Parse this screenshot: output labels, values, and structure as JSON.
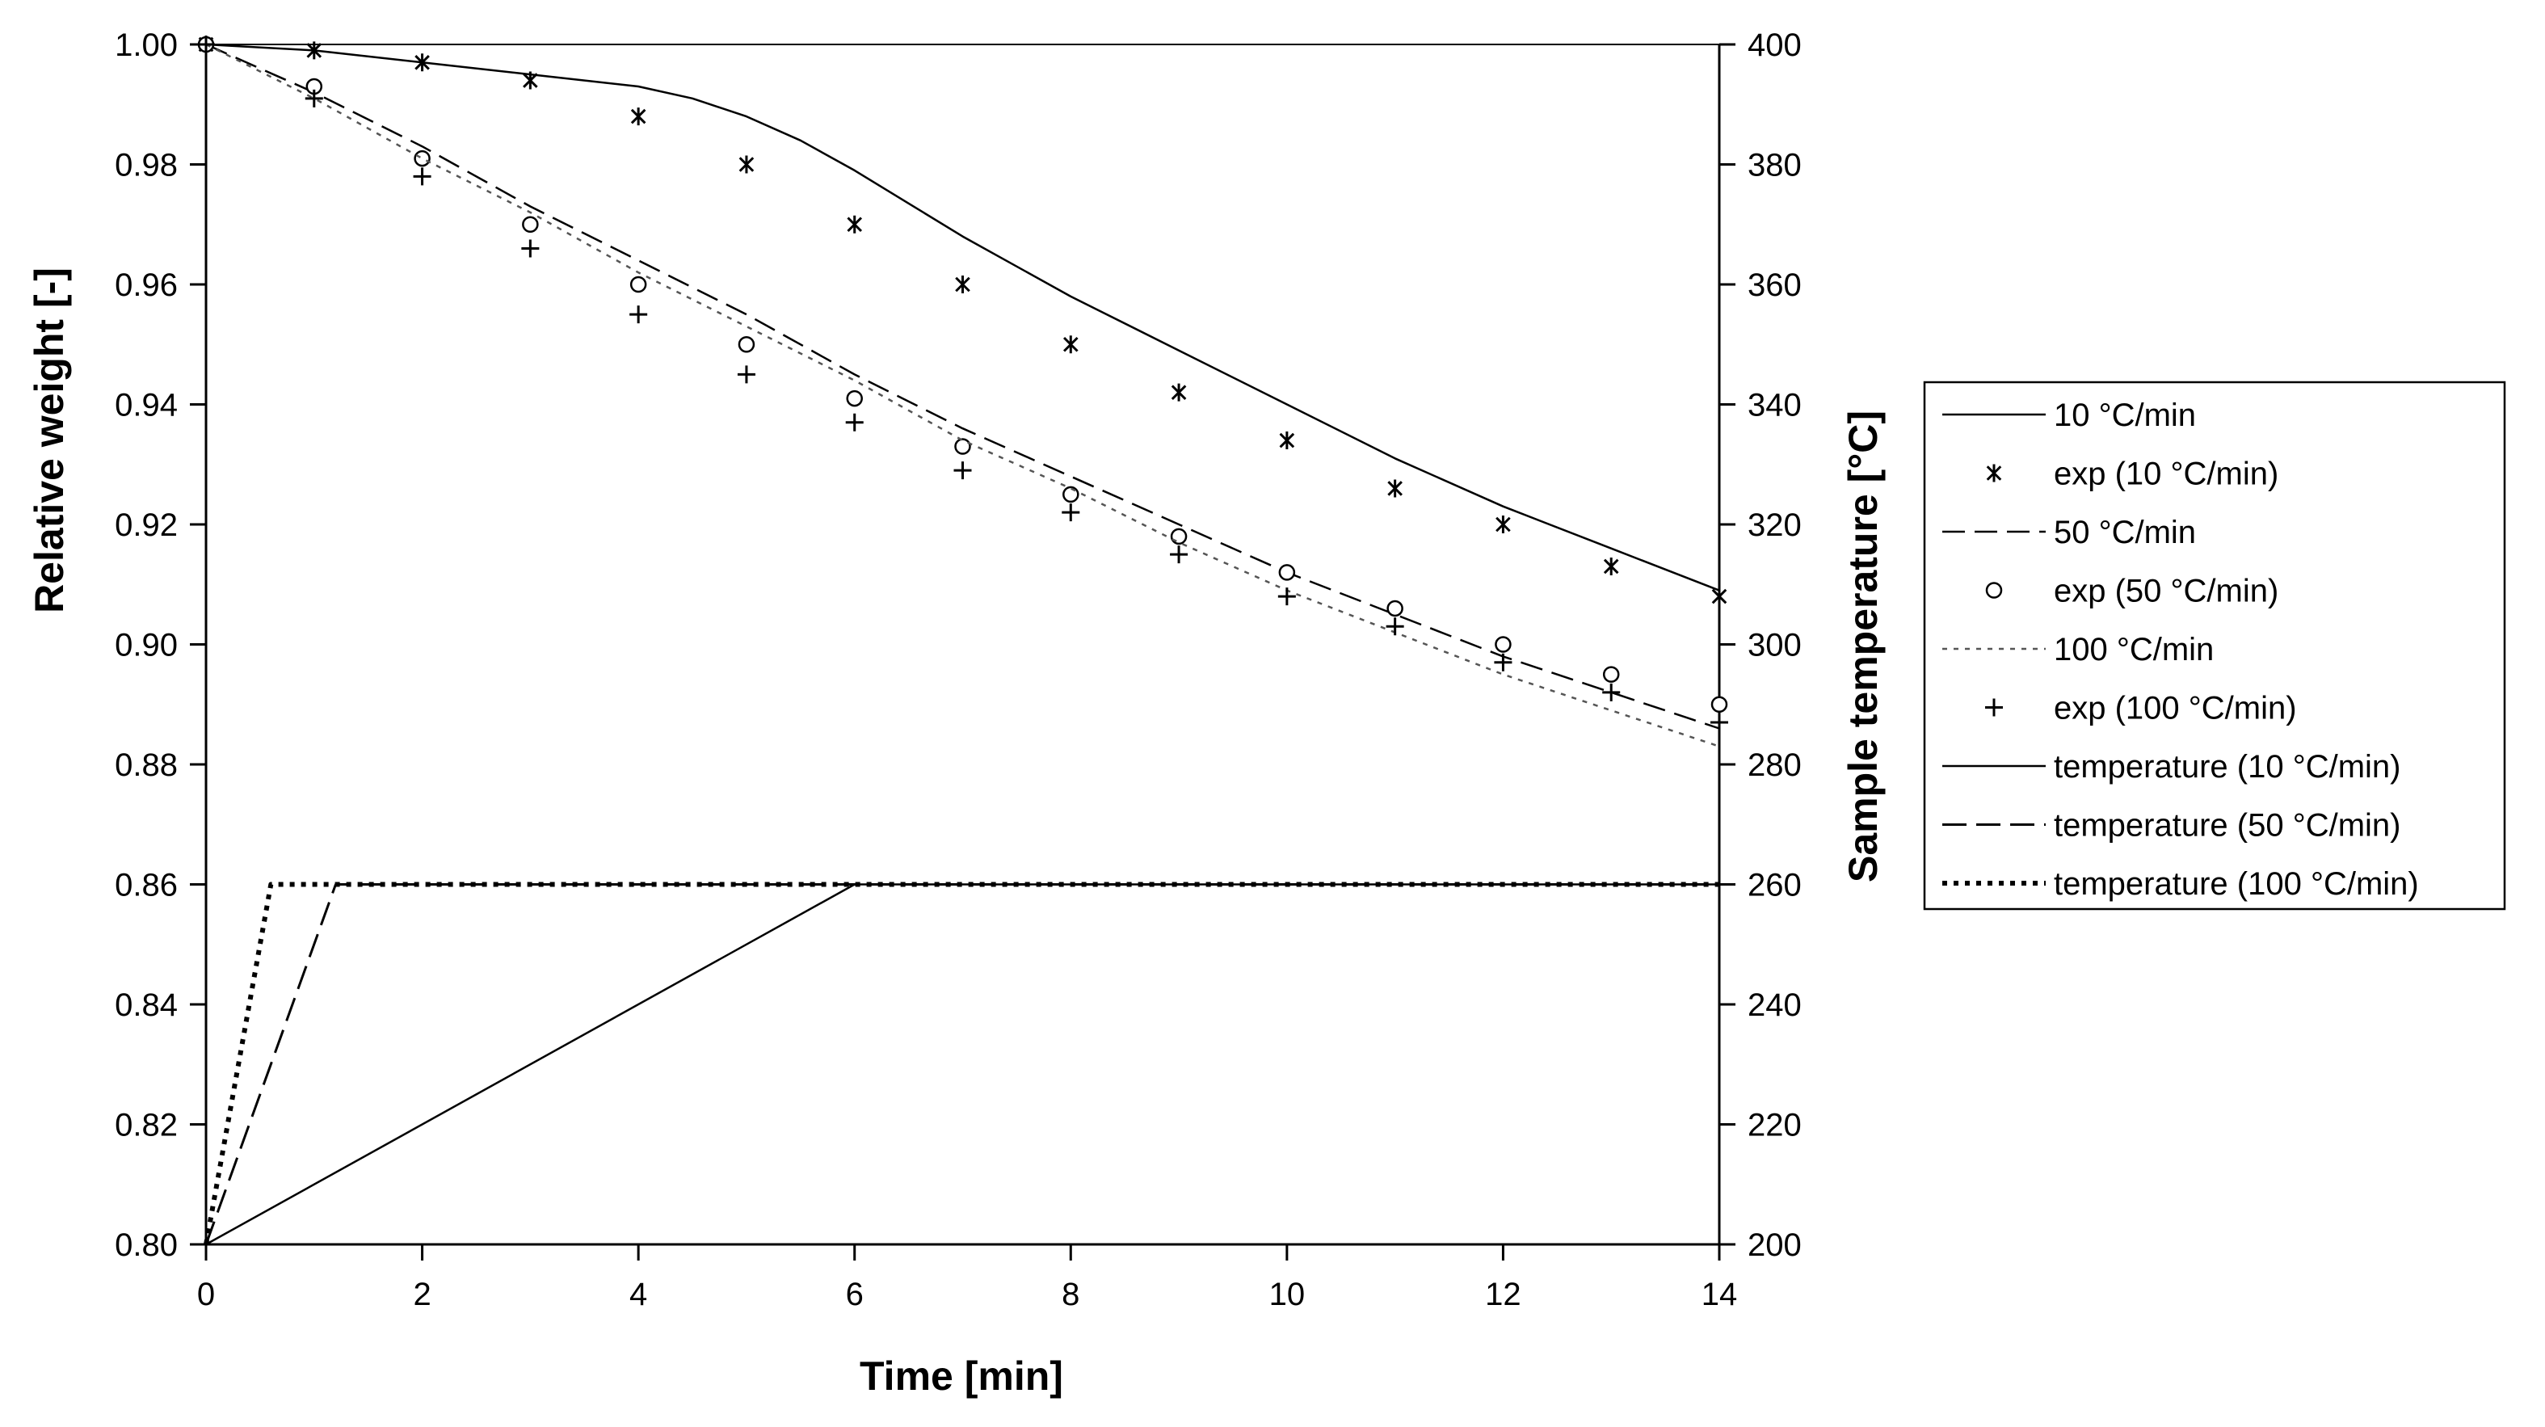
{
  "chart_data": {
    "type": "line",
    "xlabel": "Time [min]",
    "ylabel_left": "Relative weight [-]",
    "ylabel_right": "Sample temperature [°C]",
    "xlim": [
      0,
      14
    ],
    "ylim_left": [
      0.8,
      1.0
    ],
    "ylim_right": [
      200,
      400
    ],
    "x_ticks": [
      "0",
      "2",
      "4",
      "6",
      "8",
      "10",
      "12",
      "14"
    ],
    "y_left_ticks": [
      "0.80",
      "0.82",
      "0.84",
      "0.86",
      "0.88",
      "0.90",
      "0.92",
      "0.94",
      "0.96",
      "0.98",
      "1.00"
    ],
    "y_right_ticks": [
      "200",
      "220",
      "240",
      "260",
      "280",
      "300",
      "320",
      "340",
      "360",
      "380",
      "400"
    ],
    "series": [
      {
        "name": "10 °C/min",
        "axis": "left",
        "kind": "line",
        "style": "solid",
        "x": [
          0,
          1,
          2,
          3,
          4,
          4.5,
          5,
          5.5,
          6,
          7,
          8,
          9,
          10,
          11,
          12,
          13,
          14
        ],
        "y": [
          1.0,
          0.999,
          0.997,
          0.995,
          0.993,
          0.991,
          0.988,
          0.984,
          0.979,
          0.968,
          0.958,
          0.949,
          0.94,
          0.931,
          0.923,
          0.916,
          0.909
        ]
      },
      {
        "name": "exp (10 °C/min)",
        "axis": "left",
        "kind": "marker",
        "marker": "asterisk",
        "x": [
          0,
          1,
          2,
          3,
          4,
          5,
          6,
          7,
          8,
          9,
          10,
          11,
          12,
          13,
          14
        ],
        "y": [
          1.0,
          0.999,
          0.997,
          0.994,
          0.988,
          0.98,
          0.97,
          0.96,
          0.95,
          0.942,
          0.934,
          0.926,
          0.92,
          0.913,
          0.908
        ]
      },
      {
        "name": "50 °C/min",
        "axis": "left",
        "kind": "line",
        "style": "dashed",
        "x": [
          0,
          1,
          2,
          3,
          4,
          5,
          6,
          7,
          8,
          9,
          10,
          11,
          12,
          13,
          14
        ],
        "y": [
          1.0,
          0.992,
          0.983,
          0.973,
          0.964,
          0.955,
          0.945,
          0.936,
          0.928,
          0.92,
          0.912,
          0.905,
          0.898,
          0.892,
          0.886
        ]
      },
      {
        "name": "exp (50 °C/min)",
        "axis": "left",
        "kind": "marker",
        "marker": "circle",
        "x": [
          0,
          1,
          2,
          3,
          4,
          5,
          6,
          7,
          8,
          9,
          10,
          11,
          12,
          13,
          14
        ],
        "y": [
          1.0,
          0.993,
          0.981,
          0.97,
          0.96,
          0.95,
          0.941,
          0.933,
          0.925,
          0.918,
          0.912,
          0.906,
          0.9,
          0.895,
          0.89
        ]
      },
      {
        "name": "100 °C/min",
        "axis": "left",
        "kind": "line",
        "style": "dotted",
        "x": [
          0,
          1,
          2,
          3,
          4,
          5,
          6,
          7,
          8,
          9,
          10,
          11,
          12,
          13,
          14
        ],
        "y": [
          1.0,
          0.991,
          0.981,
          0.972,
          0.962,
          0.953,
          0.944,
          0.934,
          0.926,
          0.917,
          0.909,
          0.902,
          0.895,
          0.889,
          0.883
        ]
      },
      {
        "name": "exp (100 °C/min)",
        "axis": "left",
        "kind": "marker",
        "marker": "plus",
        "x": [
          0,
          1,
          2,
          3,
          4,
          5,
          6,
          7,
          8,
          9,
          10,
          11,
          12,
          13,
          14
        ],
        "y": [
          1.0,
          0.991,
          0.978,
          0.966,
          0.955,
          0.945,
          0.937,
          0.929,
          0.922,
          0.915,
          0.908,
          0.903,
          0.897,
          0.892,
          0.887
        ]
      },
      {
        "name": "temperature (10 °C/min)",
        "axis": "right",
        "kind": "line",
        "style": "solid",
        "x": [
          0,
          6,
          14
        ],
        "y": [
          200,
          260,
          260
        ]
      },
      {
        "name": "temperature (50 °C/min)",
        "axis": "right",
        "kind": "line",
        "style": "longdash",
        "x": [
          0,
          1.2,
          14
        ],
        "y": [
          200,
          260,
          260
        ]
      },
      {
        "name": "temperature (100 °C/min)",
        "axis": "right",
        "kind": "line",
        "style": "bolddot",
        "x": [
          0,
          0.6,
          14
        ],
        "y": [
          200,
          260,
          260
        ]
      }
    ],
    "legend": [
      {
        "label": "10 °C/min",
        "symbol": "line-solid"
      },
      {
        "label": "exp (10 °C/min)",
        "symbol": "asterisk"
      },
      {
        "label": "50 °C/min",
        "symbol": "line-dashed"
      },
      {
        "label": "exp (50 °C/min)",
        "symbol": "circle"
      },
      {
        "label": "100 °C/min",
        "symbol": "line-dotted"
      },
      {
        "label": "exp (100 °C/min)",
        "symbol": "plus"
      },
      {
        "label": "temperature (10 °C/min)",
        "symbol": "line-solid"
      },
      {
        "label": "temperature (50 °C/min)",
        "symbol": "line-longdash"
      },
      {
        "label": "temperature (100 °C/min)",
        "symbol": "line-bolddot"
      }
    ],
    "legend_position": "right",
    "grid": false,
    "colors": {
      "ink": "#000000",
      "dotted_line": "#555555",
      "background": "#ffffff"
    }
  }
}
